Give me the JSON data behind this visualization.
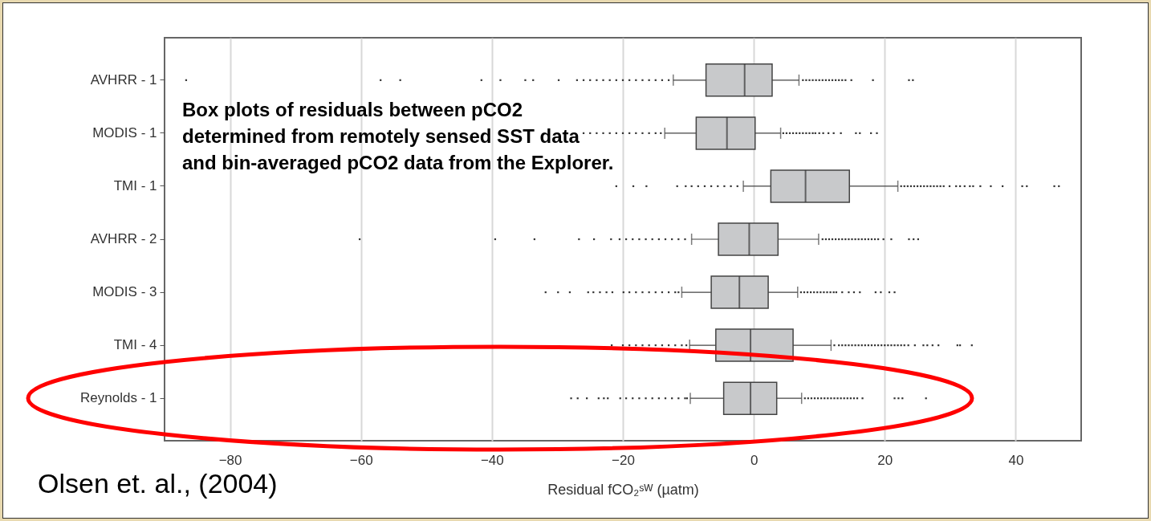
{
  "chart_data": {
    "type": "box",
    "orientation": "horizontal",
    "xlabel": "Residual fCO₂ˢᵂ (µatm)",
    "color": "#c8c9cb",
    "grid": "x",
    "xlim": [
      -90,
      50
    ],
    "xticks": [
      -80,
      -60,
      -40,
      -20,
      0,
      20,
      40
    ],
    "categories": [
      "AVHRR - 1",
      "MODIS - 1",
      "TMI - 1",
      "AVHRR - 2",
      "MODIS - 3",
      "TMI - 4",
      "Reynolds - 1"
    ],
    "boxes": [
      {
        "low": -12.3,
        "q1": -7.3,
        "median": -1.4,
        "q3": 2.8,
        "high": 6.9,
        "outliers": [
          -86.7,
          -57,
          -54,
          -41.6,
          -38.7,
          -34.9,
          -33.7,
          -29.8,
          -27,
          -26,
          -25,
          -24,
          -23,
          -22,
          -21,
          -20,
          -19,
          -18,
          -17,
          -16,
          -15,
          -14,
          -13,
          7.5,
          8,
          8.5,
          9,
          9.5,
          10,
          10.5,
          11,
          11.5,
          12,
          12.5,
          13,
          13.5,
          14,
          14.9,
          18.2,
          23.7,
          24.3
        ]
      },
      {
        "low": -13.6,
        "q1": -8.8,
        "median": -4.1,
        "q3": 0.2,
        "high": 4.1,
        "outliers": [
          -26,
          -25,
          -24,
          -23,
          -22,
          -21,
          -20,
          -19,
          -18,
          -17,
          -16,
          -15,
          -14.2,
          4.5,
          5,
          5.5,
          6,
          6.5,
          7,
          7.5,
          8,
          8.5,
          9,
          9.4,
          10,
          10.6,
          11.4,
          12.2,
          13.3,
          15.6,
          16.2,
          17.9,
          18.8
        ]
      },
      {
        "low": -1.6,
        "q1": 2.6,
        "median": 7.9,
        "q3": 14.6,
        "high": 22.0,
        "outliers": [
          -21,
          -18.4,
          -16.4,
          -11.7,
          -10.4,
          -9.5,
          -8.5,
          -7.5,
          -6.5,
          -5.5,
          -4.5,
          -3.5,
          -2.5,
          22.5,
          23,
          23.5,
          24,
          24.5,
          25,
          25.5,
          26,
          26.5,
          27,
          27.5,
          28,
          28.5,
          29,
          29.9,
          30.9,
          31.5,
          32.2,
          33,
          33.5,
          34.6,
          36.2,
          38,
          41,
          41.7,
          45.9,
          46.6
        ]
      },
      {
        "low": -9.5,
        "q1": -5.4,
        "median": -0.7,
        "q3": 3.7,
        "high": 9.9,
        "outliers": [
          -60.2,
          -39.5,
          -33.5,
          -26.7,
          -24.4,
          -21.8,
          -20.5,
          -19.5,
          -18.5,
          -17.5,
          -16.5,
          -15.5,
          -14.5,
          -13.5,
          -12.5,
          -11.5,
          -10.5,
          10.5,
          11,
          11.5,
          12,
          12.5,
          13,
          13.5,
          14,
          14.5,
          15,
          15.5,
          16,
          16.5,
          17,
          17.5,
          18,
          18.5,
          19,
          19.8,
          21,
          23.7,
          24.4,
          25.1
        ]
      },
      {
        "low": -11.0,
        "q1": -6.5,
        "median": -2.2,
        "q3": 2.2,
        "high": 6.7,
        "outliers": [
          -31.8,
          -29.9,
          -28.1,
          -25.3,
          -24.5,
          -23.5,
          -22.5,
          -21.6,
          -19.9,
          -19,
          -18,
          -17,
          -16,
          -15,
          -14,
          -13,
          -12,
          -11.5,
          7.2,
          7.7,
          8.2,
          8.7,
          9.2,
          9.7,
          10.2,
          10.7,
          11.2,
          11.7,
          12.2,
          12.6,
          13.5,
          14.5,
          15.3,
          16.2,
          18.6,
          19.4,
          20.7,
          21.5
        ]
      },
      {
        "low": -9.8,
        "q1": -5.8,
        "median": -0.5,
        "q3": 6.0,
        "high": 11.8,
        "outliers": [
          -21.7,
          -20,
          -19,
          -18,
          -17,
          -16,
          -15,
          -14,
          -13,
          -12,
          -11,
          -10.3,
          12.3,
          13,
          13.5,
          14,
          14.5,
          15,
          15.5,
          16,
          16.5,
          17,
          17.5,
          18,
          18.5,
          19,
          19.5,
          20,
          20.5,
          21,
          21.5,
          22,
          22.5,
          23,
          23.6,
          24.6,
          25.9,
          26.5,
          27.3,
          28.2,
          31.1,
          31.5,
          33.3
        ]
      },
      {
        "low": -9.7,
        "q1": -4.6,
        "median": -0.5,
        "q3": 3.5,
        "high": 7.3,
        "outliers": [
          -27.9,
          -26.9,
          -25.5,
          -23.7,
          -22.9,
          -22.3,
          -20.4,
          -19.5,
          -18.5,
          -17.5,
          -16.5,
          -15.5,
          -14.5,
          -13.5,
          -12.5,
          -11.5,
          -10.5,
          -10.2,
          7.8,
          8.3,
          8.8,
          9.3,
          9.8,
          10.3,
          10.8,
          11.3,
          11.8,
          12.3,
          12.8,
          13.3,
          13.8,
          14.3,
          14.8,
          15.3,
          15.8,
          16.6,
          21.5,
          22.1,
          22.7,
          26.3
        ]
      }
    ],
    "annotations": [
      "Box plots of residuals between pCO2 determined from remotely sensed SST data and bin-averaged pCO2 data from the Explorer.",
      "Olsen et. al., (2004)"
    ]
  }
}
